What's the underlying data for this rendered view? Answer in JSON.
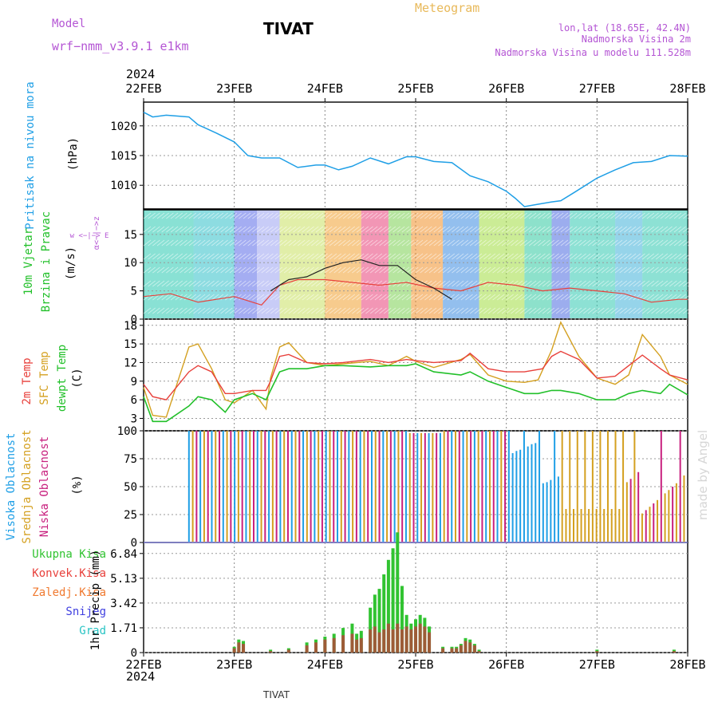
{
  "header": {
    "model_label": "Model",
    "model_name": "wrf−nmm_v3.9.1  e1km",
    "station": "TIVAT",
    "product": "Meteogram",
    "lonlat": "lon,lat (18.65E, 42.4N)",
    "elev": "Nadmorska Visina 2m",
    "elev_model": "Nadmorska Visina u modelu 111.528m",
    "year": "2024",
    "footer_station": "TIVAT",
    "watermark": "made by Angel"
  },
  "colors": {
    "pressure": "#1f9fe6",
    "t2m": "#e8413c",
    "sfc": "#d4a020",
    "dewpt": "#22c02a",
    "high_cloud": "#1f9fe6",
    "mid_cloud": "#d4a020",
    "low_cloud": "#c8207e",
    "total_precip": "#31c331",
    "conv_precip": "#c23a3a"
  },
  "chart_data": [
    {
      "type": "line",
      "panel": "pressure",
      "x_labels": [
        "22FEB",
        "23FEB",
        "24FEB",
        "25FEB",
        "26FEB",
        "27FEB",
        "28FEB"
      ],
      "ylabel_left": "Pritisak na nivou mora",
      "ylabel_unit": "(hPa)",
      "yticks": [
        1010,
        1015,
        1020
      ],
      "ylim": [
        1006,
        1024
      ],
      "series": [
        {
          "color_key": "pressure",
          "x": [
            0,
            0.1,
            0.25,
            0.5,
            0.6,
            0.8,
            1.0,
            1.15,
            1.3,
            1.5,
            1.7,
            1.9,
            2.0,
            2.15,
            2.3,
            2.5,
            2.7,
            2.9,
            3.0,
            3.2,
            3.4,
            3.6,
            3.8,
            4.0,
            4.1,
            4.2,
            4.35,
            4.5,
            4.6,
            4.75,
            5.0,
            5.2,
            5.4,
            5.6,
            5.8,
            6.0
          ],
          "y": [
            1022.3,
            1021.5,
            1021.8,
            1021.5,
            1020.2,
            1018.8,
            1017.3,
            1015.0,
            1014.6,
            1014.6,
            1013.0,
            1013.4,
            1013.4,
            1012.6,
            1013.2,
            1014.6,
            1013.6,
            1014.8,
            1014.8,
            1014.0,
            1013.8,
            1011.6,
            1010.6,
            1009.0,
            1007.8,
            1006.4,
            1006.8,
            1007.2,
            1007.4,
            1008.8,
            1011.2,
            1012.6,
            1013.8,
            1014.0,
            1015.0,
            1014.9
          ]
        }
      ]
    },
    {
      "type": "line",
      "panel": "wind",
      "ylabel_left": "10m Vjetar",
      "ylabel_left2": "Brzina i Pravac",
      "ylabel_unit": "(m/s)",
      "compass_ns": "α<−|−>z",
      "compass_ew": "w  <−|−>  E",
      "yticks": [
        0,
        5,
        10,
        15
      ],
      "ylim": [
        0,
        19.5
      ],
      "series": [
        {
          "color_key": "t2m",
          "x": [
            0,
            0.3,
            0.6,
            1.0,
            1.3,
            1.5,
            1.7,
            2.0,
            2.3,
            2.6,
            2.9,
            3.2,
            3.5,
            3.8,
            4.1,
            4.4,
            4.7,
            5.0,
            5.3,
            5.6,
            5.9,
            6.0
          ],
          "y": [
            4,
            4.5,
            3,
            4,
            2.5,
            6,
            7,
            7,
            6.5,
            6,
            6.5,
            5.5,
            5,
            6.5,
            6,
            5,
            5.5,
            5,
            4.5,
            3,
            3.5,
            3.5
          ]
        },
        {
          "color_key": "dark",
          "x": [
            1.4,
            1.6,
            1.8,
            2.0,
            2.2,
            2.4,
            2.6,
            2.8,
            3.0,
            3.2,
            3.4
          ],
          "y": [
            5,
            7,
            7.5,
            9,
            10,
            10.5,
            9.5,
            9.5,
            7,
            5.5,
            3.5
          ]
        }
      ]
    },
    {
      "type": "line",
      "panel": "temperature",
      "ylabel_left": "2m Temp",
      "ylabel_left2": "SFC Temp",
      "ylabel_left3": "dewpt Temp",
      "ylabel_unit": "(C)",
      "yticks": [
        3,
        6,
        9,
        12,
        15,
        18
      ],
      "ylim": [
        1,
        19
      ],
      "series": [
        {
          "color_key": "t2m",
          "x": [
            0,
            0.1,
            0.25,
            0.5,
            0.6,
            0.75,
            0.9,
            1.0,
            1.2,
            1.35,
            1.4,
            1.5,
            1.6,
            1.8,
            2.0,
            2.2,
            2.5,
            2.7,
            2.9,
            3.0,
            3.2,
            3.5,
            3.6,
            3.8,
            4.0,
            4.2,
            4.4,
            4.5,
            4.6,
            4.8,
            5.0,
            5.2,
            5.35,
            5.5,
            5.7,
            5.8,
            6.0
          ],
          "y": [
            8.5,
            6.5,
            6,
            10.5,
            11.5,
            10.5,
            7,
            7,
            7.5,
            7.5,
            9,
            13,
            13.3,
            12,
            11.8,
            12,
            12.5,
            12,
            12.5,
            12.3,
            12,
            12.3,
            13.5,
            11,
            10.5,
            10.5,
            11,
            13,
            13.8,
            12.5,
            9.5,
            9.8,
            11.5,
            13.2,
            11,
            10,
            9.2
          ]
        },
        {
          "color_key": "sfc",
          "x": [
            0,
            0.1,
            0.25,
            0.5,
            0.6,
            0.75,
            0.9,
            1.0,
            1.2,
            1.35,
            1.4,
            1.5,
            1.6,
            1.8,
            2.0,
            2.2,
            2.5,
            2.7,
            2.9,
            3.0,
            3.2,
            3.5,
            3.6,
            3.8,
            4.0,
            4.2,
            4.35,
            4.5,
            4.6,
            4.8,
            5.0,
            5.2,
            5.35,
            5.5,
            5.7,
            5.8,
            6.0
          ],
          "y": [
            8,
            3.5,
            3.2,
            14.5,
            15,
            11,
            6,
            5.5,
            7.5,
            4.5,
            9.5,
            14.5,
            15.2,
            12,
            11.5,
            11.8,
            12.2,
            11.5,
            13,
            12.2,
            11.2,
            12.5,
            13.3,
            10,
            9,
            8.8,
            9.2,
            14,
            18.5,
            13,
            9.5,
            8.5,
            10,
            16.5,
            13,
            10,
            8.5
          ]
        },
        {
          "color_key": "dewpt",
          "x": [
            0,
            0.1,
            0.25,
            0.5,
            0.6,
            0.75,
            0.9,
            1.0,
            1.2,
            1.35,
            1.4,
            1.5,
            1.6,
            1.8,
            2.0,
            2.2,
            2.5,
            2.7,
            2.9,
            3.0,
            3.2,
            3.5,
            3.6,
            3.8,
            4.0,
            4.2,
            4.35,
            4.5,
            4.6,
            4.8,
            5.0,
            5.2,
            5.35,
            5.5,
            5.7,
            5.8,
            6.0
          ],
          "y": [
            6.5,
            2.5,
            2.5,
            5,
            6.5,
            6,
            4,
            6,
            7,
            6,
            7.5,
            10.5,
            11,
            11,
            11.5,
            11.5,
            11.3,
            11.5,
            11.5,
            11.8,
            10.5,
            10,
            10.5,
            9,
            8,
            7,
            7,
            7.5,
            7.5,
            7,
            6,
            6,
            7,
            7.5,
            7,
            8.5,
            6.8
          ]
        }
      ]
    },
    {
      "type": "bar",
      "panel": "cloud",
      "ylabel_left": "Visoka Oblacnost",
      "ylabel_left2": "Srednja Oblacnost",
      "ylabel_left3": "Niska Oblacnost",
      "ylabel_unit": "(%)",
      "yticks": [
        0,
        25,
        50,
        75,
        100
      ],
      "ylim": [
        0,
        100
      ],
      "note": "dense hourly cloud-cover bars: high, mid, low layers"
    },
    {
      "type": "bar",
      "panel": "precip",
      "legend": [
        "Ukupna Kisa",
        "Konvek.Kisa",
        "Zaledj.Kisa",
        "Snijeg",
        "Grad"
      ],
      "legend_colors": [
        "#31c331",
        "#e8413c",
        "#f07a30",
        "#4040e0",
        "#29c4c4"
      ],
      "ylabel_unit": "1hr Precip (mm)",
      "yticks": [
        0,
        1.71,
        3.42,
        5.13,
        6.84
      ],
      "ylim": [
        0,
        7.6
      ],
      "x": [
        1.0,
        1.05,
        1.1,
        1.4,
        1.6,
        1.8,
        1.9,
        2.0,
        2.1,
        2.2,
        2.3,
        2.35,
        2.4,
        2.5,
        2.55,
        2.6,
        2.65,
        2.7,
        2.75,
        2.8,
        2.85,
        2.9,
        2.95,
        3.0,
        3.05,
        3.1,
        3.15,
        3.3,
        3.4,
        3.45,
        3.5,
        3.55,
        3.6,
        3.65,
        3.7,
        5.0,
        5.85
      ],
      "total": [
        0.4,
        0.9,
        0.8,
        0.2,
        0.3,
        0.7,
        0.9,
        1.1,
        1.3,
        1.7,
        2.0,
        1.3,
        1.5,
        3.1,
        4.0,
        4.4,
        5.4,
        6.4,
        7.2,
        8.3,
        4.6,
        2.6,
        2.0,
        2.3,
        2.6,
        2.4,
        1.8,
        0.4,
        0.4,
        0.4,
        0.6,
        1.0,
        0.9,
        0.6,
        0.2,
        0.2,
        0.2
      ],
      "convective": [
        0.3,
        0.7,
        0.6,
        0.1,
        0.2,
        0.5,
        0.7,
        0.9,
        1.0,
        1.2,
        1.3,
        0.9,
        1.0,
        1.6,
        1.8,
        1.4,
        1.6,
        2.0,
        1.6,
        2.0,
        1.6,
        1.8,
        1.6,
        1.8,
        2.0,
        1.8,
        1.4,
        0.3,
        0.3,
        0.3,
        0.5,
        0.8,
        0.7,
        0.5,
        0.1,
        0.1,
        0.1
      ]
    }
  ]
}
